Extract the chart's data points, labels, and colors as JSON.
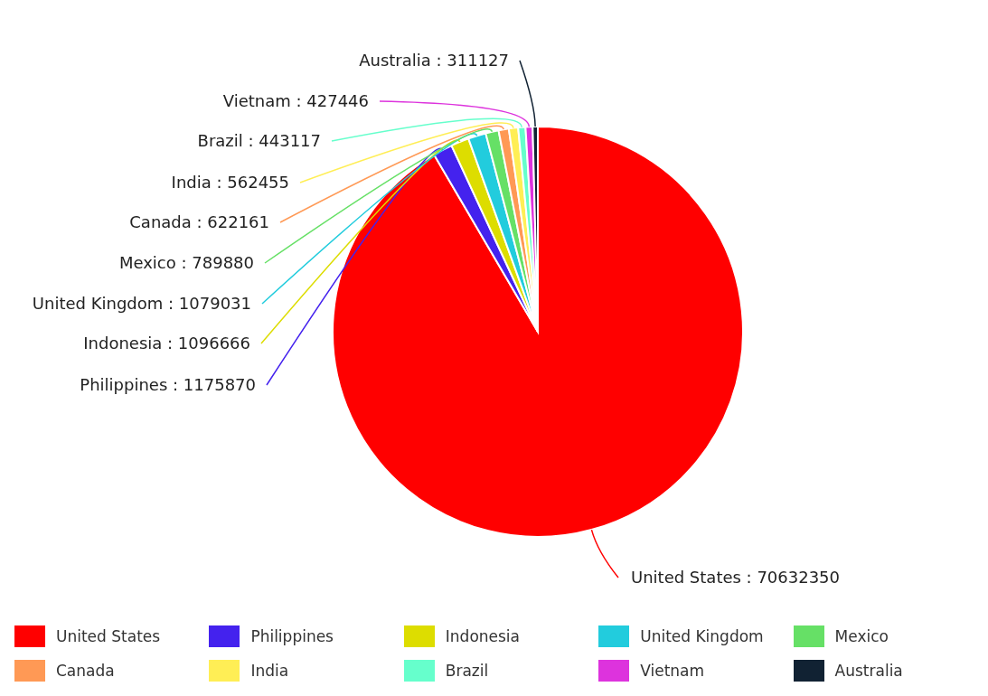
{
  "chart_data": {
    "type": "pie",
    "categories": [
      "United States",
      "Philippines",
      "Indonesia",
      "United Kingdom",
      "Mexico",
      "Canada",
      "India",
      "Brazil",
      "Vietnam",
      "Australia"
    ],
    "values": [
      70632350,
      1175870,
      1096666,
      1079031,
      789880,
      622161,
      562455,
      443117,
      427446,
      311127
    ],
    "value_labels": [
      "United States : 70632350",
      "Philippines : 1175870",
      "Indonesia : 1096666",
      "United Kingdom : 1079031",
      "Mexico : 789880",
      "Canada : 622161",
      "India : 562455",
      "Brazil : 443117",
      "Vietnam : 427446",
      "Australia : 311127"
    ],
    "colors": [
      "#ff0000",
      "#4422ee",
      "#dddd00",
      "#22ccdd",
      "#66e066",
      "#ff9955",
      "#ffee55",
      "#66ffcc",
      "#dd33dd",
      "#112233"
    ],
    "legend": "bottom"
  }
}
